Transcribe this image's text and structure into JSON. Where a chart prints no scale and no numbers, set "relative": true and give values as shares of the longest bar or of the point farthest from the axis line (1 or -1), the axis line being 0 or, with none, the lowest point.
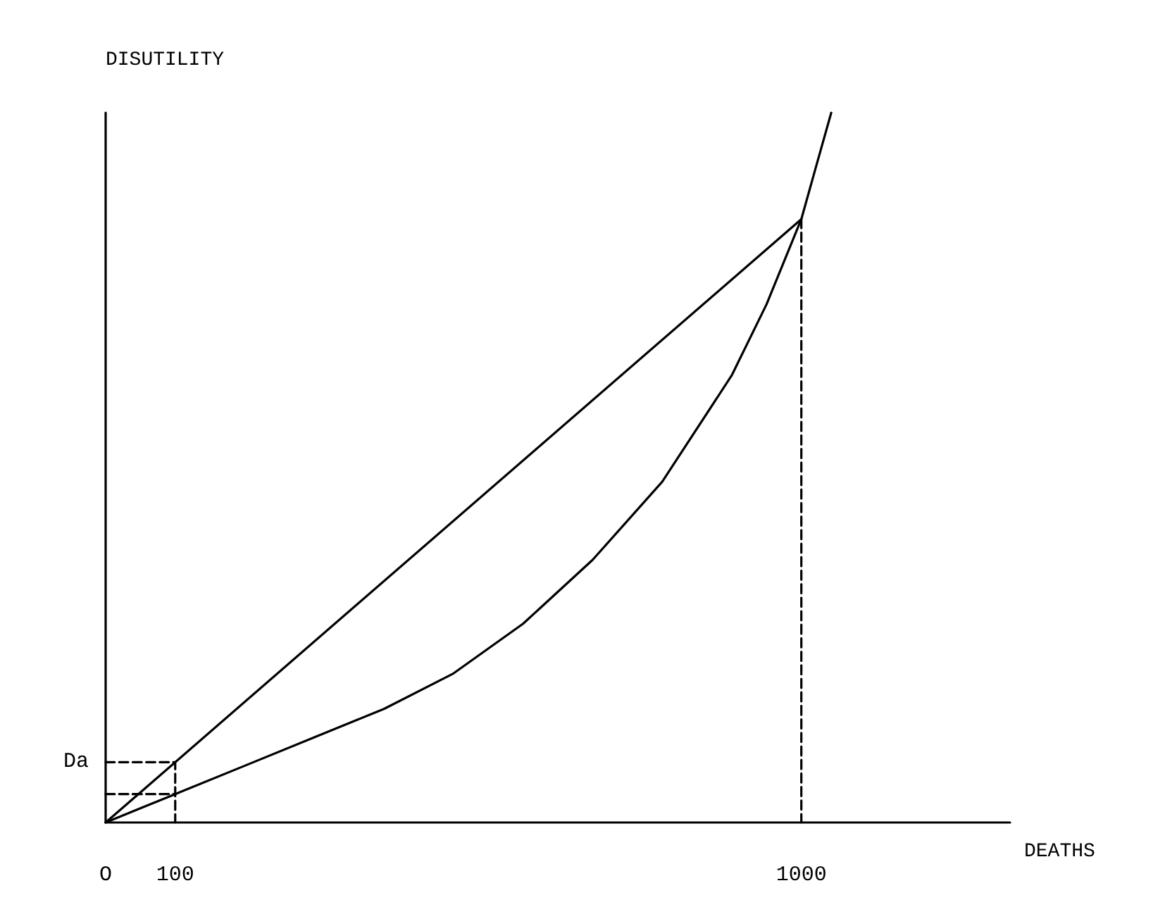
{
  "chart_data": {
    "type": "line",
    "xlabel": "DEATHS",
    "ylabel": "DISUTILITY",
    "relative": true,
    "xlim": [
      0,
      1300
    ],
    "xticks": [
      {
        "value": 0,
        "label": "O"
      },
      100,
      1000
    ],
    "tick_labels": "x",
    "grid": false,
    "marker": "none",
    "line_style": "solid",
    "series": [
      {
        "color": "#000000",
        "x": [
          0,
          1000
        ],
        "values": [
          0,
          0.85
        ]
      },
      {
        "color": "#000000",
        "x": [
          0,
          50,
          100,
          200,
          300,
          400,
          500,
          600,
          700,
          800,
          900,
          950,
          1000,
          1020,
          1043
        ],
        "values": [
          0,
          0.02,
          0.04,
          0.08,
          0.12,
          0.16,
          0.21,
          0.28,
          0.37,
          0.48,
          0.63,
          0.73,
          0.85,
          0.92,
          1.0
        ]
      },
      {
        "color": "#000000",
        "line_style": "dashed",
        "x": [
          0,
          100,
          100
        ],
        "values": [
          0.085,
          0.085,
          0
        ]
      },
      {
        "color": "#000000",
        "line_style": "dashed",
        "x": [
          0,
          100
        ],
        "values": [
          0.04,
          0.04
        ]
      },
      {
        "color": "#000000",
        "line_style": "dashed",
        "x": [
          1000,
          1000
        ],
        "values": [
          0.85,
          0
        ]
      }
    ],
    "annotations": [
      {
        "text": "Da",
        "x": 0,
        "y": 0.085
      }
    ]
  }
}
